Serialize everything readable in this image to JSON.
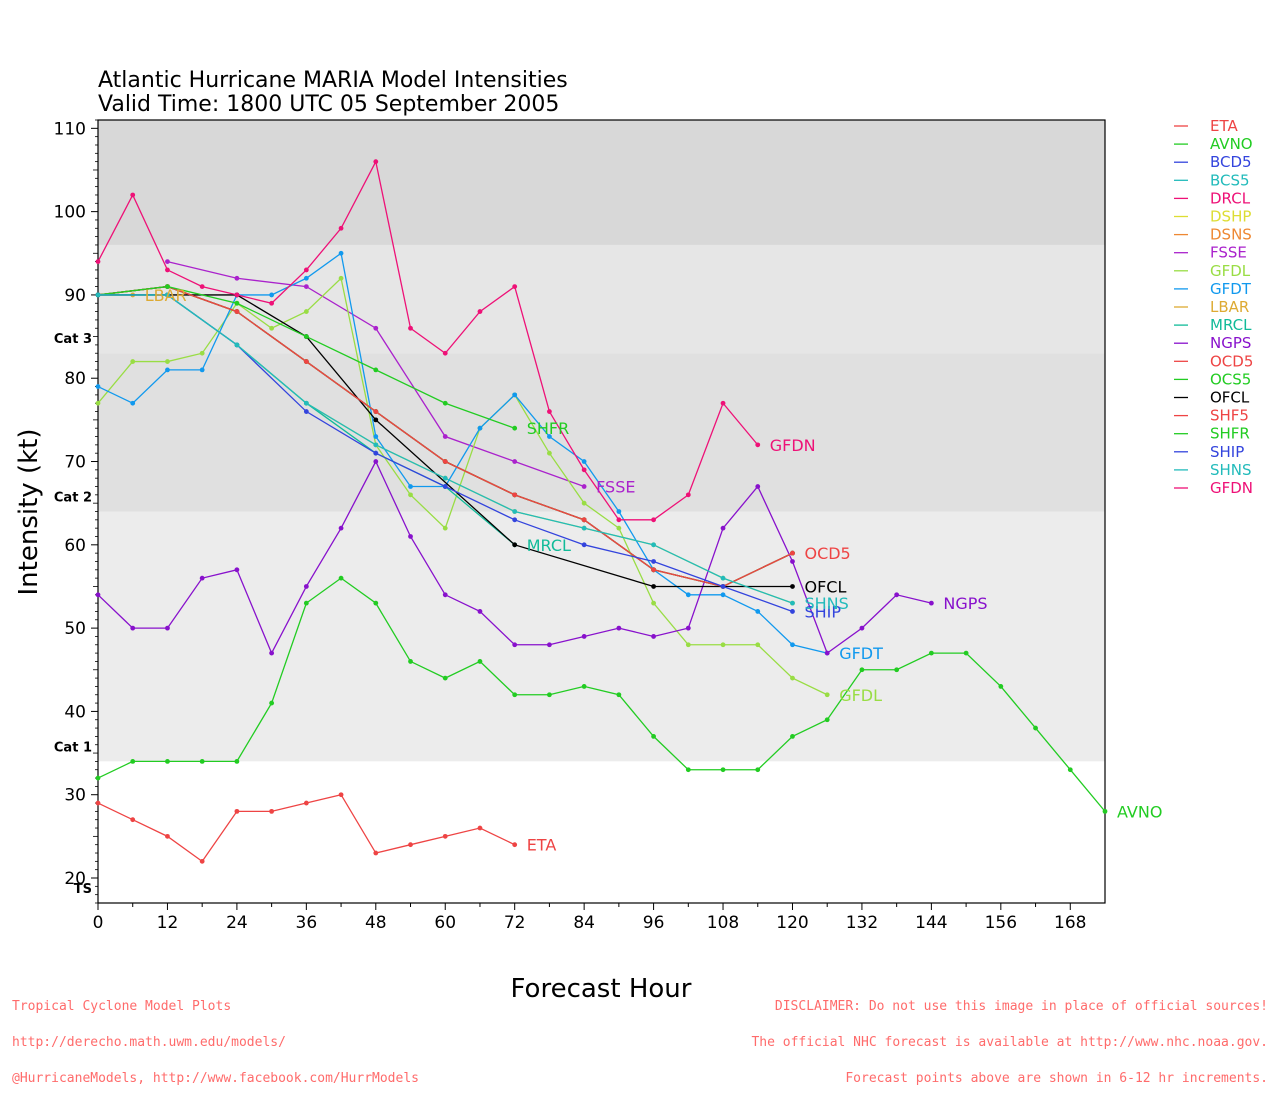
{
  "chart_data": {
    "type": "line",
    "title": "Atlantic Hurricane MARIA Model Intensities",
    "subtitle": "Valid Time: 1800 UTC 05 September 2005",
    "xlabel": "Forecast Hour",
    "ylabel": "Intensity (kt)",
    "xlim": [
      0,
      174
    ],
    "ylim": [
      17,
      111
    ],
    "x_ticks": [
      0,
      12,
      24,
      36,
      48,
      60,
      72,
      84,
      96,
      108,
      120,
      132,
      144,
      156,
      168
    ],
    "y_ticks": [
      20,
      30,
      40,
      50,
      60,
      70,
      80,
      90,
      100,
      110
    ],
    "legend_position": "right",
    "bands": [
      {
        "from": 96,
        "to": 111,
        "color": "#d8d8d8",
        "label": ""
      },
      {
        "from": 83,
        "to": 96,
        "color": "#e6e6e6",
        "label": "Cat 3"
      },
      {
        "from": 64,
        "to": 83,
        "color": "#e0e0e0",
        "label": "Cat 2"
      },
      {
        "from": 34,
        "to": 64,
        "color": "#ececec",
        "label": "Cat 1"
      },
      {
        "from": 17,
        "to": 34,
        "color": "#ffffff",
        "label": "TS"
      }
    ],
    "series": [
      {
        "name": "ETA",
        "color": "#ee4444",
        "end_label": "ETA",
        "x": [
          0,
          6,
          12,
          18,
          24,
          30,
          36,
          42,
          48,
          54,
          60,
          66,
          72
        ],
        "y": [
          29,
          27,
          25,
          22,
          28,
          28,
          29,
          30,
          23,
          24,
          25,
          26,
          24
        ]
      },
      {
        "name": "AVNO",
        "color": "#22cc22",
        "end_label": "AVNO",
        "x": [
          0,
          6,
          12,
          18,
          24,
          30,
          36,
          42,
          48,
          54,
          60,
          66,
          72,
          78,
          84,
          90,
          96,
          102,
          108,
          114,
          120,
          126,
          132,
          138,
          144,
          150,
          156,
          162,
          168,
          174
        ],
        "y": [
          32,
          34,
          34,
          34,
          34,
          41,
          53,
          56,
          53,
          46,
          44,
          46,
          42,
          42,
          43,
          42,
          37,
          33,
          33,
          33,
          37,
          39,
          45,
          45,
          47,
          47,
          43,
          38,
          33,
          28
        ]
      },
      {
        "name": "BCD5",
        "color": "#3344dd",
        "end_label": "",
        "x": [
          0,
          12,
          24,
          36,
          48,
          60,
          72,
          84,
          96,
          108,
          120
        ],
        "y": [
          90,
          91,
          88,
          82,
          76,
          70,
          66,
          63,
          57,
          55,
          59
        ]
      },
      {
        "name": "BCS5",
        "color": "#22bbbb",
        "end_label": "",
        "x": [
          0,
          12,
          24,
          36,
          48,
          60,
          72,
          84,
          96,
          108,
          120
        ],
        "y": [
          90,
          91,
          88,
          82,
          76,
          70,
          66,
          63,
          57,
          55,
          59
        ]
      },
      {
        "name": "DRCL",
        "color": "#ee1177",
        "end_label": "",
        "x": [
          0,
          12,
          24,
          36,
          48,
          60,
          72,
          84,
          96,
          108,
          120
        ],
        "y": [
          90,
          91,
          88,
          82,
          76,
          70,
          66,
          63,
          57,
          55,
          59
        ]
      },
      {
        "name": "DSHP",
        "color": "#dddd33",
        "end_label": "",
        "x": [
          0,
          12,
          24,
          36,
          48,
          60,
          72,
          84,
          96,
          108,
          120
        ],
        "y": [
          90,
          90,
          84,
          77,
          72,
          68,
          64,
          62,
          60,
          56,
          53
        ]
      },
      {
        "name": "DSNS",
        "color": "#ee8833",
        "end_label": "",
        "x": [
          0,
          12,
          24,
          36,
          48,
          60,
          72,
          84,
          96,
          108,
          120
        ],
        "y": [
          90,
          91,
          88,
          82,
          76,
          70,
          66,
          63,
          57,
          55,
          59
        ]
      },
      {
        "name": "FSSE",
        "color": "#aa22cc",
        "end_label": "FSSE",
        "x": [
          12,
          24,
          36,
          48,
          60,
          72,
          84
        ],
        "y": [
          94,
          92,
          91,
          86,
          73,
          70,
          67
        ]
      },
      {
        "name": "GFDL",
        "color": "#99dd44",
        "end_label": "GFDL",
        "x": [
          0,
          6,
          12,
          18,
          24,
          30,
          36,
          42,
          48,
          54,
          60,
          66,
          72,
          78,
          84,
          90,
          96,
          102,
          108,
          114,
          120,
          126
        ],
        "y": [
          77,
          82,
          82,
          83,
          89,
          86,
          88,
          92,
          72,
          66,
          62,
          74,
          78,
          71,
          65,
          62,
          53,
          48,
          48,
          48,
          44,
          42
        ]
      },
      {
        "name": "GFDT",
        "color": "#1199ee",
        "end_label": "GFDT",
        "x": [
          0,
          6,
          12,
          18,
          24,
          30,
          36,
          42,
          48,
          54,
          60,
          66,
          72,
          78,
          84,
          90,
          96,
          102,
          108,
          114,
          120,
          126
        ],
        "y": [
          79,
          77,
          81,
          81,
          90,
          90,
          92,
          95,
          73,
          67,
          67,
          74,
          78,
          73,
          70,
          64,
          57,
          54,
          54,
          52,
          48,
          47
        ]
      },
      {
        "name": "LBAR",
        "color": "#ddaa33",
        "end_label": "LBAR",
        "x": [
          0,
          6
        ],
        "y": [
          90,
          90
        ]
      },
      {
        "name": "MRCL",
        "color": "#11bb99",
        "end_label": "MRCL",
        "x": [
          0,
          12,
          24,
          36,
          48,
          60,
          72
        ],
        "y": [
          90,
          90,
          84,
          77,
          71,
          67,
          60
        ]
      },
      {
        "name": "NGPS",
        "color": "#8811cc",
        "end_label": "NGPS",
        "x": [
          0,
          6,
          12,
          18,
          24,
          30,
          36,
          42,
          48,
          54,
          60,
          66,
          72,
          78,
          84,
          90,
          96,
          102,
          108,
          114,
          120,
          126,
          132,
          138,
          144
        ],
        "y": [
          54,
          50,
          50,
          56,
          57,
          47,
          55,
          62,
          70,
          61,
          54,
          52,
          48,
          48,
          49,
          50,
          49,
          50,
          62,
          67,
          58,
          47,
          50,
          54,
          53
        ]
      },
      {
        "name": "OCD5",
        "color": "#ee4444",
        "end_label": "OCD5",
        "x": [
          0,
          12,
          24,
          36,
          48,
          60,
          72,
          84,
          96,
          108,
          120
        ],
        "y": [
          90,
          91,
          88,
          82,
          76,
          70,
          66,
          63,
          57,
          55,
          59
        ]
      },
      {
        "name": "OCS5",
        "color": "#22cc22",
        "end_label": "",
        "x": [
          0,
          12,
          24,
          36,
          48,
          60,
          72,
          84,
          96,
          108,
          120
        ],
        "y": [
          90,
          91,
          88,
          82,
          76,
          70,
          66,
          63,
          57,
          55,
          59
        ]
      },
      {
        "name": "OFCL",
        "color": "#000000",
        "end_label": "OFCL",
        "x": [
          0,
          12,
          24,
          36,
          48,
          72,
          96,
          120
        ],
        "y": [
          90,
          90,
          90,
          85,
          75,
          60,
          55,
          55
        ]
      },
      {
        "name": "SHF5",
        "color": "#ee4444",
        "end_label": "",
        "x": [
          0,
          12,
          24,
          36,
          48,
          60,
          72,
          84,
          96,
          108,
          120
        ],
        "y": [
          90,
          91,
          88,
          82,
          76,
          70,
          66,
          63,
          57,
          55,
          59
        ]
      },
      {
        "name": "SHFR",
        "color": "#22cc22",
        "end_label": "SHFR",
        "x": [
          0,
          12,
          24,
          36,
          48,
          60,
          72
        ],
        "y": [
          90,
          91,
          89,
          85,
          81,
          77,
          74
        ]
      },
      {
        "name": "SHIP",
        "color": "#3344dd",
        "end_label": "SHIP",
        "x": [
          0,
          12,
          24,
          36,
          48,
          60,
          72,
          84,
          96,
          108,
          120
        ],
        "y": [
          90,
          90,
          84,
          76,
          71,
          67,
          63,
          60,
          58,
          55,
          52
        ]
      },
      {
        "name": "SHNS",
        "color": "#22bbbb",
        "end_label": "SHNS",
        "x": [
          0,
          12,
          24,
          36,
          48,
          60,
          72,
          84,
          96,
          108,
          120
        ],
        "y": [
          90,
          90,
          84,
          77,
          72,
          68,
          64,
          62,
          60,
          56,
          53
        ]
      },
      {
        "name": "GFDN",
        "color": "#ee1177",
        "end_label": "GFDN",
        "x": [
          0,
          6,
          12,
          18,
          24,
          30,
          36,
          42,
          48,
          54,
          60,
          66,
          72,
          78,
          84,
          90,
          96,
          102,
          108,
          114
        ],
        "y": [
          94,
          102,
          93,
          91,
          90,
          89,
          93,
          98,
          106,
          86,
          83,
          88,
          91,
          76,
          69,
          63,
          63,
          66,
          77,
          72
        ]
      }
    ]
  },
  "footer": {
    "left": [
      "Tropical Cyclone Model Plots",
      "http://derecho.math.uwm.edu/models/",
      "@HurricaneModels, http://www.facebook.com/HurrModels"
    ],
    "right": [
      "DISCLAIMER: Do not use this image in place of official sources!",
      "The official NHC forecast is available at http://www.nhc.noaa.gov.",
      "Forecast points above are shown in 6-12 hr increments."
    ]
  }
}
